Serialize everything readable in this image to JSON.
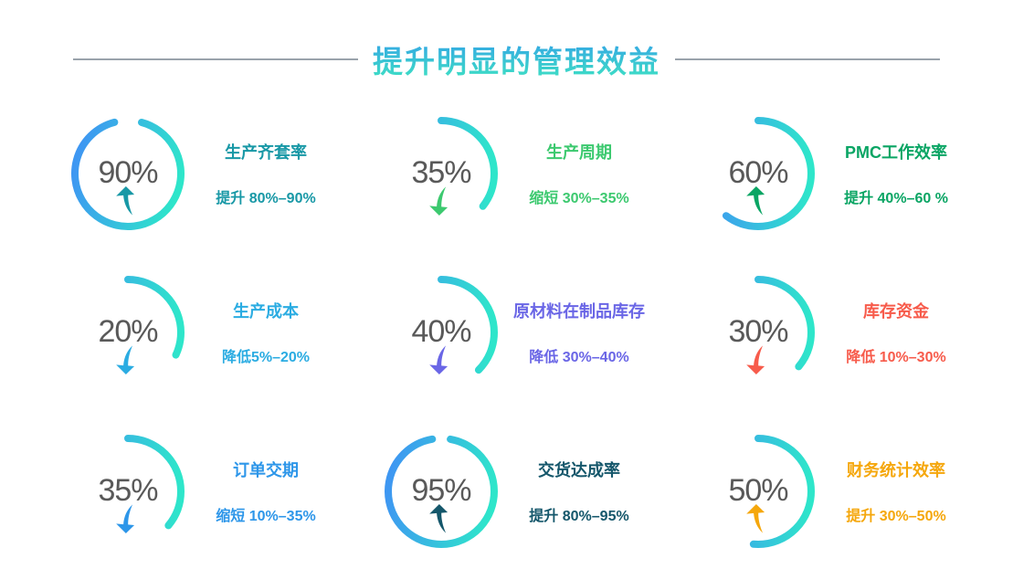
{
  "title": {
    "text": "提升明显的管理效益",
    "gradient_from": "#33a0e8",
    "gradient_to": "#3fe3c2"
  },
  "arc_gradient": {
    "from": "#3e97f2",
    "to": "#2ee6ca"
  },
  "percent_color": "#595959",
  "items": [
    {
      "pct": "90%",
      "label": "生产齐套率",
      "range": "提升 80%–90%",
      "color": "#1898a6",
      "direction": "up",
      "arc_deg": 330,
      "arc_start_deg": 15
    },
    {
      "pct": "35%",
      "label": "生产周期",
      "range": "缩短 30%–35%",
      "color": "#3cc96f",
      "direction": "down",
      "arc_deg": 128,
      "arc_start_deg": 0
    },
    {
      "pct": "60%",
      "label": "PMC工作效率",
      "range": "提升 40%–60 %",
      "color": "#0aa564",
      "direction": "up",
      "arc_deg": 217,
      "arc_start_deg": 0
    },
    {
      "pct": "20%",
      "label": "生产成本",
      "range": "降低5%–20%",
      "color": "#2bace2",
      "direction": "down",
      "arc_deg": 115,
      "arc_start_deg": 0
    },
    {
      "pct": "40%",
      "label": "原材料在制品库存",
      "range": "降低 30%–40%",
      "color": "#6a66e6",
      "direction": "down",
      "arc_deg": 135,
      "arc_start_deg": 0
    },
    {
      "pct": "30%",
      "label": "库存资金",
      "range": "降低 10%–30%",
      "color": "#f75b4b",
      "direction": "down",
      "arc_deg": 130,
      "arc_start_deg": 0
    },
    {
      "pct": "35%",
      "label": "订单交期",
      "range": "缩短 10%–35%",
      "color": "#2d96e9",
      "direction": "down",
      "arc_deg": 130,
      "arc_start_deg": 0
    },
    {
      "pct": "95%",
      "label": "交货达成率",
      "range": "提升 80%–95%",
      "color": "#15576b",
      "direction": "up",
      "arc_deg": 340,
      "arc_start_deg": 10
    },
    {
      "pct": "50%",
      "label": "财务统计效率",
      "range": "提升 30%–50%",
      "color": "#f5a70c",
      "direction": "up",
      "arc_deg": 185,
      "arc_start_deg": 0
    }
  ],
  "chart_data": {
    "type": "gauge",
    "title": "提升明显的管理效益",
    "layout": "3x3 grid of partial-ring gauges, percentage centered, trend arrow below, colored label and range text at right",
    "gauges": [
      {
        "label": "生产齐套率",
        "value_pct": 90,
        "range_text": "提升 80%–90%",
        "trend": "up",
        "color": "#1898a6"
      },
      {
        "label": "生产周期",
        "value_pct": 35,
        "range_text": "缩短 30%–35%",
        "trend": "down",
        "color": "#3cc96f"
      },
      {
        "label": "PMC工作效率",
        "value_pct": 60,
        "range_text": "提升 40%–60 %",
        "trend": "up",
        "color": "#0aa564"
      },
      {
        "label": "生产成本",
        "value_pct": 20,
        "range_text": "降低5%–20%",
        "trend": "down",
        "color": "#2bace2"
      },
      {
        "label": "原材料在制品库存",
        "value_pct": 40,
        "range_text": "降低 30%–40%",
        "trend": "down",
        "color": "#6a66e6"
      },
      {
        "label": "库存资金",
        "value_pct": 30,
        "range_text": "降低 10%–30%",
        "trend": "down",
        "color": "#f75b4b"
      },
      {
        "label": "订单交期",
        "value_pct": 35,
        "range_text": "缩短 10%–35%",
        "trend": "down",
        "color": "#2d96e9"
      },
      {
        "label": "交货达成率",
        "value_pct": 95,
        "range_text": "提升 80%–95%",
        "trend": "up",
        "color": "#15576b"
      },
      {
        "label": "财务统计效率",
        "value_pct": 50,
        "range_text": "提升 30%–50%",
        "trend": "up",
        "color": "#f5a70c"
      }
    ],
    "ring_gradient": [
      "#3e97f2",
      "#2ee6ca"
    ]
  }
}
